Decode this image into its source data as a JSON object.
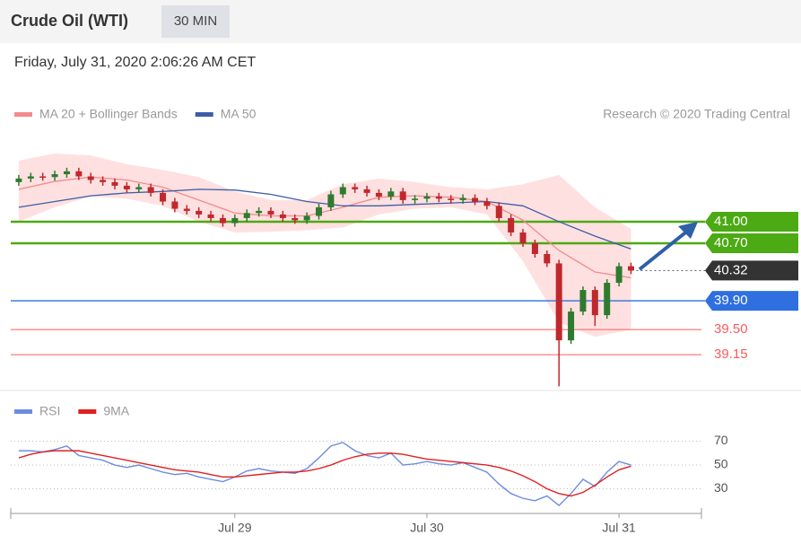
{
  "header": {
    "title": "Crude Oil (WTI)",
    "timeframe": "30 MIN",
    "datetime": "Friday, July 31, 2020 2:06:26 AM CET",
    "credit": "Research © 2020 Trading Central"
  },
  "chart_data": [
    {
      "type": "candlestick",
      "x": [
        -27,
        -25.5,
        -24,
        -22.5,
        -21,
        -19.5,
        -18,
        -16.5,
        -15,
        -13.5,
        -12,
        -10.5,
        -9,
        -7.5,
        -6,
        -4.5,
        -3,
        -1.5,
        0,
        1.5,
        3,
        4.5,
        6,
        7.5,
        9,
        10.5,
        12,
        13.5,
        15,
        16.5,
        18,
        19.5,
        21,
        22.5,
        24,
        25.5,
        27,
        28.5,
        30,
        31.5,
        33,
        34.5,
        36,
        37.5,
        39,
        40.5,
        42,
        43.5,
        45,
        46.5,
        48,
        49.5
      ],
      "open": [
        41.55,
        41.6,
        41.63,
        41.62,
        41.66,
        41.7,
        41.63,
        41.58,
        41.55,
        41.5,
        41.45,
        41.48,
        41.4,
        41.28,
        41.18,
        41.15,
        41.1,
        41.05,
        40.98,
        41.05,
        41.12,
        41.15,
        41.1,
        41.05,
        41.02,
        41.08,
        41.2,
        41.38,
        41.48,
        41.45,
        41.4,
        41.35,
        41.42,
        41.3,
        41.32,
        41.35,
        41.32,
        41.3,
        41.33,
        41.28,
        41.22,
        41.05,
        40.85,
        40.7,
        40.55,
        40.42,
        39.35,
        39.75,
        40.05,
        39.7,
        40.15,
        40.38
      ],
      "high": [
        41.65,
        41.68,
        41.68,
        41.71,
        41.75,
        41.75,
        41.68,
        41.63,
        41.6,
        41.55,
        41.53,
        41.53,
        41.45,
        41.33,
        41.23,
        41.2,
        41.15,
        41.1,
        41.1,
        41.17,
        41.2,
        41.2,
        41.15,
        41.1,
        41.13,
        41.25,
        41.43,
        41.53,
        41.53,
        41.5,
        41.45,
        41.47,
        41.47,
        41.37,
        41.4,
        41.4,
        41.37,
        41.38,
        41.38,
        41.33,
        41.27,
        41.1,
        40.9,
        40.75,
        40.6,
        40.47,
        39.8,
        40.1,
        40.1,
        40.2,
        40.43,
        40.43
      ],
      "low": [
        41.5,
        41.55,
        41.57,
        41.57,
        41.61,
        41.58,
        41.53,
        41.5,
        41.45,
        41.4,
        41.4,
        41.35,
        41.23,
        41.13,
        41.1,
        41.05,
        41.0,
        40.93,
        40.93,
        41.0,
        41.07,
        41.05,
        41.0,
        40.97,
        40.97,
        41.03,
        41.15,
        41.33,
        41.4,
        41.35,
        41.3,
        41.3,
        41.25,
        41.25,
        41.27,
        41.27,
        41.25,
        41.25,
        41.23,
        41.17,
        41.0,
        40.8,
        40.65,
        40.5,
        40.37,
        38.71,
        39.3,
        39.7,
        39.55,
        39.65,
        40.1,
        40.27
      ],
      "close": [
        41.6,
        41.63,
        41.62,
        41.66,
        41.7,
        41.63,
        41.58,
        41.55,
        41.5,
        41.45,
        41.48,
        41.4,
        41.28,
        41.18,
        41.15,
        41.1,
        41.05,
        40.98,
        41.05,
        41.12,
        41.15,
        41.1,
        41.05,
        41.02,
        41.08,
        41.2,
        41.38,
        41.48,
        41.45,
        41.4,
        41.35,
        41.42,
        41.3,
        41.32,
        41.35,
        41.32,
        41.3,
        41.33,
        41.28,
        41.22,
        41.05,
        40.85,
        40.7,
        40.55,
        40.42,
        39.35,
        39.75,
        40.05,
        39.7,
        40.15,
        40.38,
        40.32
      ],
      "up_color": "#2f7a2f",
      "down_color": "#c0282d",
      "xlim": [
        -28,
        58.3
      ],
      "ylim": [
        38.69,
        42.21
      ],
      "overlays": {
        "x": [
          -27,
          -22.5,
          -18,
          -13.5,
          -9,
          -4.5,
          0,
          4.5,
          9,
          13.5,
          18,
          22.5,
          27,
          31.5,
          36,
          40.5,
          45,
          49.5
        ],
        "series": [
          {
            "name": "MA 20 + Bollinger Bands",
            "color": "#f28b8b",
            "band_color": "#ffd6d6",
            "values": [
              41.45,
              41.56,
              41.62,
              41.58,
              41.48,
              41.3,
              41.12,
              41.08,
              41.08,
              41.2,
              41.34,
              41.36,
              41.34,
              41.28,
              41.02,
              40.6,
              40.3,
              40.22
            ],
            "upper": [
              41.85,
              41.95,
              41.92,
              41.8,
              41.72,
              41.62,
              41.42,
              41.3,
              41.3,
              41.52,
              41.6,
              41.55,
              41.48,
              41.45,
              41.52,
              41.65,
              41.2,
              40.9
            ],
            "lower": [
              41.0,
              41.2,
              41.35,
              41.32,
              41.22,
              41.0,
              40.85,
              40.86,
              40.88,
              40.92,
              41.1,
              41.18,
              41.2,
              41.1,
              40.45,
              39.6,
              39.4,
              39.5
            ]
          },
          {
            "name": "MA 50",
            "color": "#3b5ea6",
            "values": [
              41.2,
              41.28,
              41.36,
              41.4,
              41.42,
              41.45,
              41.44,
              41.38,
              41.28,
              41.22,
              41.22,
              41.24,
              41.26,
              41.28,
              41.22,
              41.0,
              40.8,
              40.62
            ]
          }
        ]
      },
      "levels": [
        {
          "value": 41.0,
          "label": "41.00",
          "color": "#4caa14",
          "style": "box"
        },
        {
          "value": 40.7,
          "label": "40.70",
          "color": "#4caa14",
          "style": "box"
        },
        {
          "value": 40.32,
          "label": "40.32",
          "color": "#333333",
          "style": "current"
        },
        {
          "value": 39.9,
          "label": "39.90",
          "color": "#2f6fe0",
          "style": "box"
        },
        {
          "value": 39.5,
          "label": "39.50",
          "color": "#ff5a5a",
          "style": "text"
        },
        {
          "value": 39.15,
          "label": "39.15",
          "color": "#ff5a5a",
          "style": "text"
        }
      ]
    },
    {
      "type": "line",
      "x": [
        -27,
        -25.5,
        -24,
        -22.5,
        -21,
        -19.5,
        -18,
        -16.5,
        -15,
        -13.5,
        -12,
        -10.5,
        -9,
        -7.5,
        -6,
        -4.5,
        -3,
        -1.5,
        0,
        1.5,
        3,
        4.5,
        6,
        7.5,
        9,
        10.5,
        12,
        13.5,
        15,
        16.5,
        18,
        19.5,
        21,
        22.5,
        24,
        25.5,
        27,
        28.5,
        30,
        31.5,
        33,
        34.5,
        36,
        37.5,
        39,
        40.5,
        42,
        43.5,
        45,
        46.5,
        48,
        49.5
      ],
      "series": [
        {
          "name": "RSI",
          "color": "#6b8de0",
          "values": [
            62,
            62,
            61,
            63,
            66,
            58,
            56,
            54,
            50,
            48,
            50,
            47,
            44,
            42,
            43,
            40,
            38,
            36,
            40,
            45,
            47,
            45,
            44,
            43,
            47,
            56,
            66,
            69,
            62,
            58,
            56,
            60,
            50,
            51,
            53,
            51,
            50,
            52,
            48,
            44,
            34,
            26,
            22,
            20,
            24,
            16,
            26,
            38,
            32,
            44,
            53,
            50
          ]
        },
        {
          "name": "9MA",
          "color": "#e02020",
          "values": [
            56,
            59,
            61,
            62,
            62,
            62,
            60,
            58,
            56,
            54,
            52,
            50,
            48,
            46,
            45,
            44,
            42,
            40,
            40,
            41,
            42,
            43,
            44,
            44,
            45,
            47,
            50,
            54,
            57,
            59,
            60,
            60,
            59,
            57,
            55,
            54,
            53,
            52,
            51,
            50,
            48,
            45,
            41,
            36,
            30,
            26,
            24,
            27,
            33,
            40,
            46,
            49
          ]
        }
      ],
      "xlim": [
        -28,
        58.3
      ],
      "ylim": [
        13.8,
        78.7
      ],
      "yticks": [
        30,
        50,
        70
      ],
      "grid": true,
      "xticks": [
        {
          "value": 0,
          "label": "Jul 29"
        },
        {
          "value": 24,
          "label": "Jul 30"
        },
        {
          "value": 48,
          "label": "Jul 31"
        }
      ]
    }
  ]
}
